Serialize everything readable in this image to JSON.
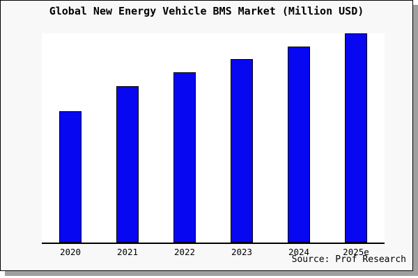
{
  "page": {
    "background": "#ffffff"
  },
  "card": {
    "background": "#f8f8f8",
    "border_color": "#000000",
    "shadow_color": "#a0a0a0"
  },
  "chart_data": {
    "type": "bar",
    "title": "Global New Energy Vehicle BMS Market (Million USD)",
    "categories": [
      "2020",
      "2021",
      "2022",
      "2023",
      "2024",
      "2025e"
    ],
    "values": [
      62.8,
      74.8,
      81.4,
      87.7,
      93.7,
      100
    ],
    "value_note": "y-axis has no tick labels or gridlines; values are relative bar heights normalized to 2025e = 100",
    "xlabel": "",
    "ylabel": "",
    "ylim": [
      0,
      100
    ],
    "grid": false,
    "legend": null,
    "bar_fill": "#0707f2",
    "bar_border": "#000000",
    "plot_background": "#ffffff",
    "axis_color": "#000000"
  },
  "source": {
    "text": "Source: Prof Research"
  }
}
